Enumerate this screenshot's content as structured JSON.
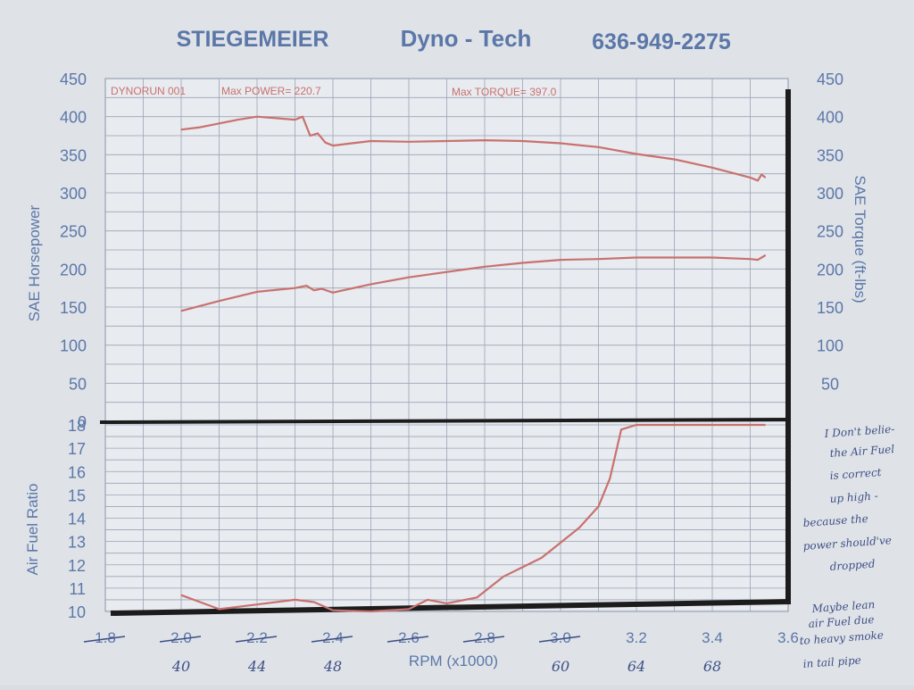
{
  "header": {
    "company": "STIEGEMEIER",
    "brand": "Dyno - Tech",
    "phone": "636-949-2275"
  },
  "colors": {
    "paper": "#dfe3e8",
    "print_blue": "#5b77a8",
    "trace_red": "#c9716f",
    "grid": "#9aa4b6",
    "ink": "#1c1c1c",
    "pen": "#3e4f86"
  },
  "chart_data": [
    {
      "type": "line",
      "title": "",
      "annotations": {
        "run": "DYNORUN 001",
        "max_power_label": "Max POWER= 220.7",
        "max_torque_label": "Max TORQUE= 397.0"
      },
      "xlabel": "",
      "ylabel": "SAE Horsepower",
      "ylabel_right": "SAE Torque (ft-lbs)",
      "xlim": [
        1.8,
        3.6
      ],
      "ylim": [
        0,
        450
      ],
      "yticks": [
        0,
        50,
        100,
        150,
        200,
        250,
        300,
        350,
        400,
        450
      ],
      "yticks_right": [
        50,
        100,
        150,
        200,
        250,
        300,
        350,
        400,
        450
      ],
      "grid": true,
      "series": [
        {
          "key": "torque",
          "axis": "right",
          "x": [
            2.0,
            2.05,
            2.1,
            2.15,
            2.2,
            2.25,
            2.3,
            2.32,
            2.34,
            2.36,
            2.38,
            2.4,
            2.45,
            2.5,
            2.6,
            2.7,
            2.8,
            2.9,
            3.0,
            3.1,
            3.2,
            3.3,
            3.4,
            3.5,
            3.52,
            3.53,
            3.54
          ],
          "values": [
            383,
            386,
            391,
            396,
            400,
            398,
            396,
            400,
            375,
            378,
            366,
            362,
            365,
            368,
            367,
            368,
            369,
            368,
            365,
            360,
            351,
            344,
            333,
            320,
            316,
            324,
            320
          ]
        },
        {
          "key": "power",
          "axis": "left",
          "x": [
            2.0,
            2.1,
            2.2,
            2.3,
            2.33,
            2.35,
            2.37,
            2.4,
            2.5,
            2.6,
            2.7,
            2.8,
            2.9,
            3.0,
            3.1,
            3.2,
            3.3,
            3.4,
            3.5,
            3.52,
            3.54
          ],
          "values": [
            145,
            158,
            170,
            175,
            178,
            172,
            174,
            169,
            180,
            189,
            196,
            203,
            208,
            212,
            213,
            215,
            215,
            215,
            213,
            212,
            218
          ]
        }
      ]
    },
    {
      "type": "line",
      "title": "",
      "xlabel": "RPM (x1000)",
      "ylabel": "Air Fuel Ratio",
      "xlim": [
        1.8,
        3.6
      ],
      "ylim": [
        10,
        18
      ],
      "yticks": [
        10,
        11,
        12,
        13,
        14,
        15,
        16,
        17,
        18
      ],
      "xticks": [
        "1.8",
        "2.0",
        "2.2",
        "2.4",
        "2.6",
        "2.8",
        "3.0",
        "3.2",
        "3.4",
        "3.6"
      ],
      "grid": true,
      "series": [
        {
          "key": "afr",
          "x": [
            2.0,
            2.05,
            2.1,
            2.2,
            2.3,
            2.35,
            2.4,
            2.5,
            2.6,
            2.65,
            2.7,
            2.78,
            2.85,
            2.95,
            3.05,
            3.1,
            3.13,
            3.16,
            3.2,
            3.3,
            3.4,
            3.5,
            3.54
          ],
          "values": [
            10.7,
            10.4,
            10.1,
            10.3,
            10.5,
            10.4,
            10.05,
            10.0,
            10.1,
            10.5,
            10.35,
            10.6,
            11.5,
            12.3,
            13.6,
            14.5,
            15.7,
            17.8,
            18.0,
            18.0,
            18.0,
            18.0,
            18.0
          ]
        }
      ]
    }
  ],
  "handwriting": {
    "bottom_numbers": [
      "40",
      "44",
      "48",
      "60",
      "64",
      "68"
    ],
    "note_lines": [
      "I Don't belie-",
      "the Air Fuel",
      "is correct",
      "up high -",
      "because the",
      "power should've",
      "dropped",
      "Maybe lean",
      "air Fuel due",
      "to heavy smoke",
      "in tail pipe"
    ]
  }
}
